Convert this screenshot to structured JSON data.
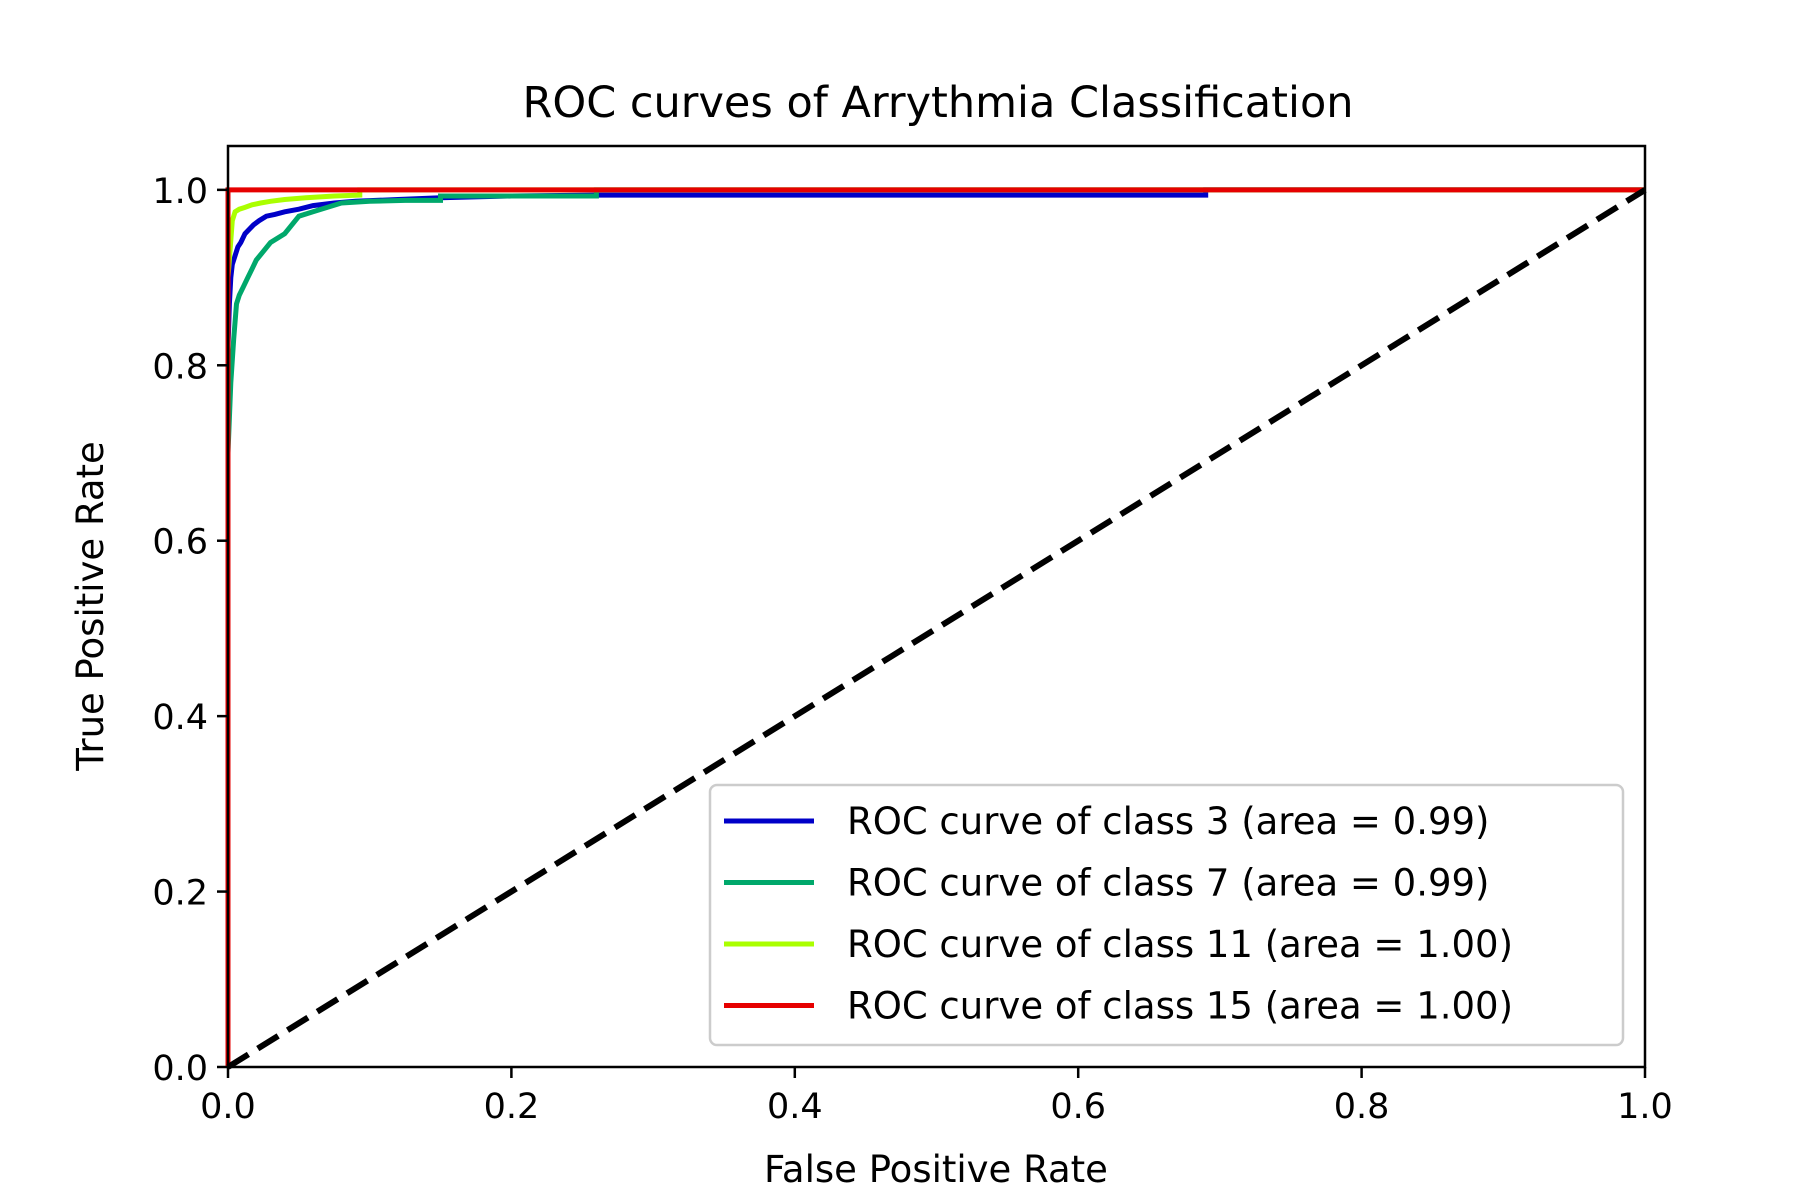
{
  "chart_data": {
    "type": "line",
    "title": "ROC curves of Arrythmia Classification",
    "xlabel": "False Positive Rate",
    "ylabel": "True Positive Rate",
    "xlim": [
      0.0,
      1.0
    ],
    "ylim": [
      0.0,
      1.05
    ],
    "xticks": [
      "0.0",
      "0.2",
      "0.4",
      "0.6",
      "0.8",
      "1.0"
    ],
    "yticks": [
      "0.0",
      "0.2",
      "0.4",
      "0.6",
      "0.8",
      "1.0"
    ],
    "grid": false,
    "legend_position": "lower-right",
    "diagonal": {
      "x": [
        0.0,
        1.0
      ],
      "y": [
        0.0,
        1.0
      ],
      "color": "#000000",
      "style": "dashed"
    },
    "series": [
      {
        "name": "ROC curve of class 3 (area = 0.99)",
        "color": "#0000c8",
        "x": [
          0.0,
          0.0,
          0.001,
          0.002,
          0.003,
          0.005,
          0.007,
          0.009,
          0.012,
          0.015,
          0.018,
          0.022,
          0.027,
          0.033,
          0.04,
          0.05,
          0.06,
          0.075,
          0.09,
          0.12,
          0.15,
          0.2,
          0.26,
          0.4,
          0.55,
          0.69,
          0.69,
          1.0
        ],
        "y": [
          0.0,
          0.82,
          0.87,
          0.9,
          0.915,
          0.925,
          0.935,
          0.94,
          0.95,
          0.955,
          0.96,
          0.965,
          0.97,
          0.972,
          0.975,
          0.978,
          0.982,
          0.985,
          0.987,
          0.989,
          0.991,
          0.993,
          0.994,
          0.994,
          0.994,
          0.994,
          1.0,
          1.0
        ]
      },
      {
        "name": "ROC curve of class 7 (area = 0.99)",
        "color": "#00a86b",
        "x": [
          0.0,
          0.0,
          0.002,
          0.004,
          0.006,
          0.008,
          0.011,
          0.014,
          0.017,
          0.02,
          0.025,
          0.03,
          0.035,
          0.04,
          0.045,
          0.05,
          0.06,
          0.07,
          0.08,
          0.1,
          0.125,
          0.15,
          0.15,
          0.2,
          0.26,
          0.26,
          1.0
        ],
        "y": [
          0.0,
          0.7,
          0.78,
          0.83,
          0.87,
          0.88,
          0.89,
          0.9,
          0.91,
          0.92,
          0.93,
          0.94,
          0.945,
          0.95,
          0.96,
          0.97,
          0.975,
          0.98,
          0.985,
          0.987,
          0.988,
          0.988,
          0.993,
          0.993,
          0.993,
          1.0,
          1.0
        ]
      },
      {
        "name": "ROC curve of class 11 (area = 1.00)",
        "color": "#aaff00",
        "x": [
          0.0,
          0.0,
          0.003,
          0.005,
          0.008,
          0.012,
          0.017,
          0.023,
          0.03,
          0.04,
          0.055,
          0.075,
          0.093,
          0.093,
          1.0
        ],
        "y": [
          0.0,
          0.9,
          0.965,
          0.975,
          0.978,
          0.98,
          0.983,
          0.985,
          0.987,
          0.989,
          0.991,
          0.993,
          0.994,
          1.0,
          1.0
        ]
      },
      {
        "name": "ROC curve of class 15 (area = 1.00)",
        "color": "#e60000",
        "x": [
          0.0,
          0.0,
          0.002,
          1.0
        ],
        "y": [
          0.0,
          1.0,
          1.0,
          1.0
        ]
      }
    ]
  }
}
